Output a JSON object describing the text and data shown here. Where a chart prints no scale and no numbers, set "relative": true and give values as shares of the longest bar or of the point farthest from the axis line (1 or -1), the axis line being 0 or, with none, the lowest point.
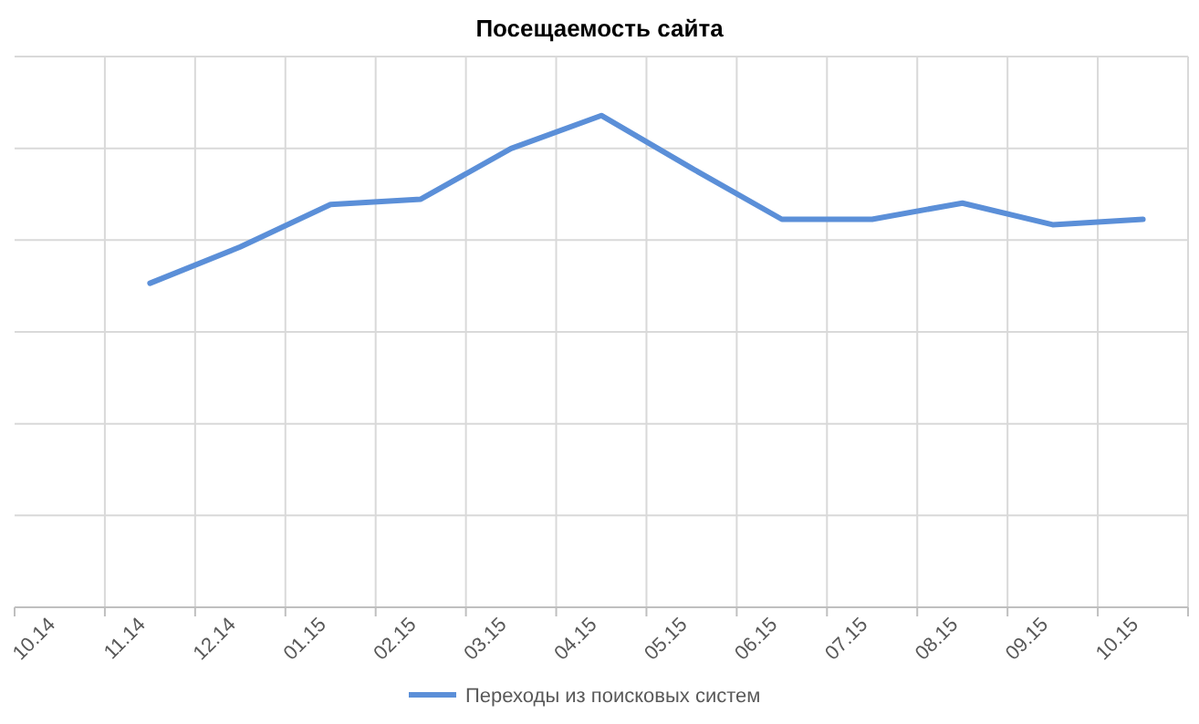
{
  "chart_data": {
    "type": "line",
    "title": "Посещаемость сайта",
    "relative": true,
    "categories": [
      "10.14",
      "11.14",
      "12.14",
      "01.15",
      "02.15",
      "03.15",
      "04.15",
      "05.15",
      "06.15",
      "07.15",
      "08.15",
      "09.15",
      "10.15"
    ],
    "series": [
      {
        "name": "Переходы  из поисковых систем",
        "color": "#5b8fd8",
        "values": [
          null,
          0.659,
          0.733,
          0.819,
          0.83,
          0.933,
          1,
          0.893,
          0.789,
          0.789,
          0.822,
          0.778,
          0.789
        ]
      }
    ],
    "grid": true,
    "legend": "bottom",
    "marker": "none",
    "line_style": "solid"
  }
}
